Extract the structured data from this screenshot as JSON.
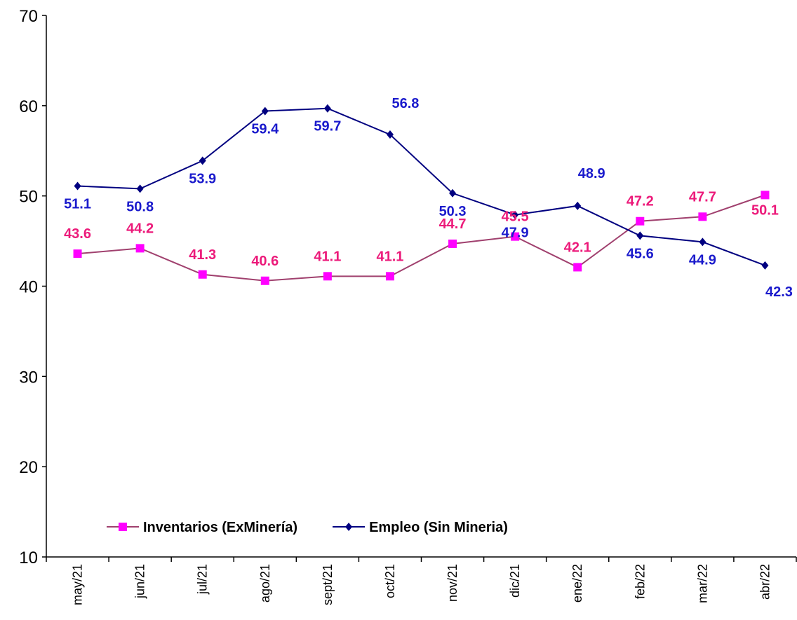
{
  "chart_data": {
    "type": "line",
    "categories": [
      "may/21",
      "jun/21",
      "jul/21",
      "ago/21",
      "sept/21",
      "oct/21",
      "nov/21",
      "dic/21",
      "ene/22",
      "feb/22",
      "mar/22",
      "abr/22"
    ],
    "series": [
      {
        "name": "Inventarios (ExMinería)",
        "color": "#a0406e",
        "marker_color": "#ff00ff",
        "label_color": "#ec1a7a",
        "marker": "square",
        "values": [
          43.6,
          44.2,
          41.3,
          40.6,
          41.1,
          41.1,
          44.7,
          45.5,
          42.1,
          47.2,
          47.7,
          50.1
        ]
      },
      {
        "name": "Empleo (Sin Mineria)",
        "color": "#000080",
        "marker_color": "#000080",
        "label_color": "#1a1acc",
        "marker": "diamond",
        "values": [
          51.1,
          50.8,
          53.9,
          59.4,
          59.7,
          56.8,
          50.3,
          47.9,
          48.9,
          45.6,
          44.9,
          42.3
        ]
      }
    ],
    "ylim": [
      10,
      70
    ],
    "yticks": [
      10,
      20,
      30,
      40,
      50,
      60,
      70
    ],
    "grid": false,
    "legend": "bottom-left"
  }
}
